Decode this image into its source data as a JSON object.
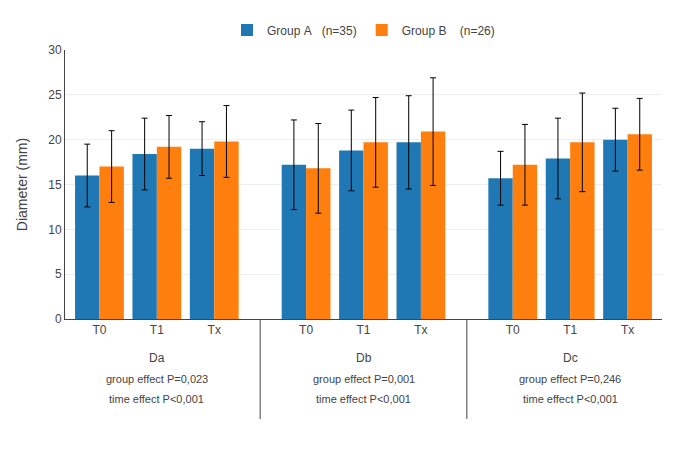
{
  "chart_data": {
    "type": "bar",
    "categories": [
      "T0",
      "T1",
      "Tx",
      "T0",
      "T1",
      "Tx",
      "T0",
      "T1",
      "Tx"
    ],
    "series": [
      {
        "name": "Group A   (n=35)",
        "values": [
          16.0,
          18.4,
          19.0,
          17.2,
          18.8,
          19.7,
          15.7,
          17.9,
          20.0
        ],
        "errors": [
          3.5,
          4.0,
          3.0,
          5.0,
          4.5,
          5.2,
          3.0,
          4.5,
          3.5
        ]
      },
      {
        "name": "Group B    (n=26)",
        "values": [
          17.0,
          19.2,
          19.8,
          16.8,
          19.7,
          20.9,
          17.2,
          19.7,
          20.6
        ],
        "errors": [
          4.0,
          3.5,
          4.0,
          5.0,
          5.0,
          6.0,
          4.5,
          5.5,
          4.0
        ]
      }
    ],
    "y_label": "Diameter (mm)",
    "ylim": [
      0,
      30
    ],
    "yticks": [
      0,
      5,
      10,
      15,
      20,
      25,
      30
    ],
    "annotations": [
      {
        "label": "Da",
        "group_effect": "group effect P=0,023",
        "time_effect": "time effect P<0,001"
      },
      {
        "label": "Db",
        "group_effect": "group effect P=0,001",
        "time_effect": "time effect P<0,001"
      },
      {
        "label": "Dc",
        "group_effect": "group effect P=0,246",
        "time_effect": "time effect P<0,001"
      }
    ],
    "legend": "top",
    "grid": true
  }
}
